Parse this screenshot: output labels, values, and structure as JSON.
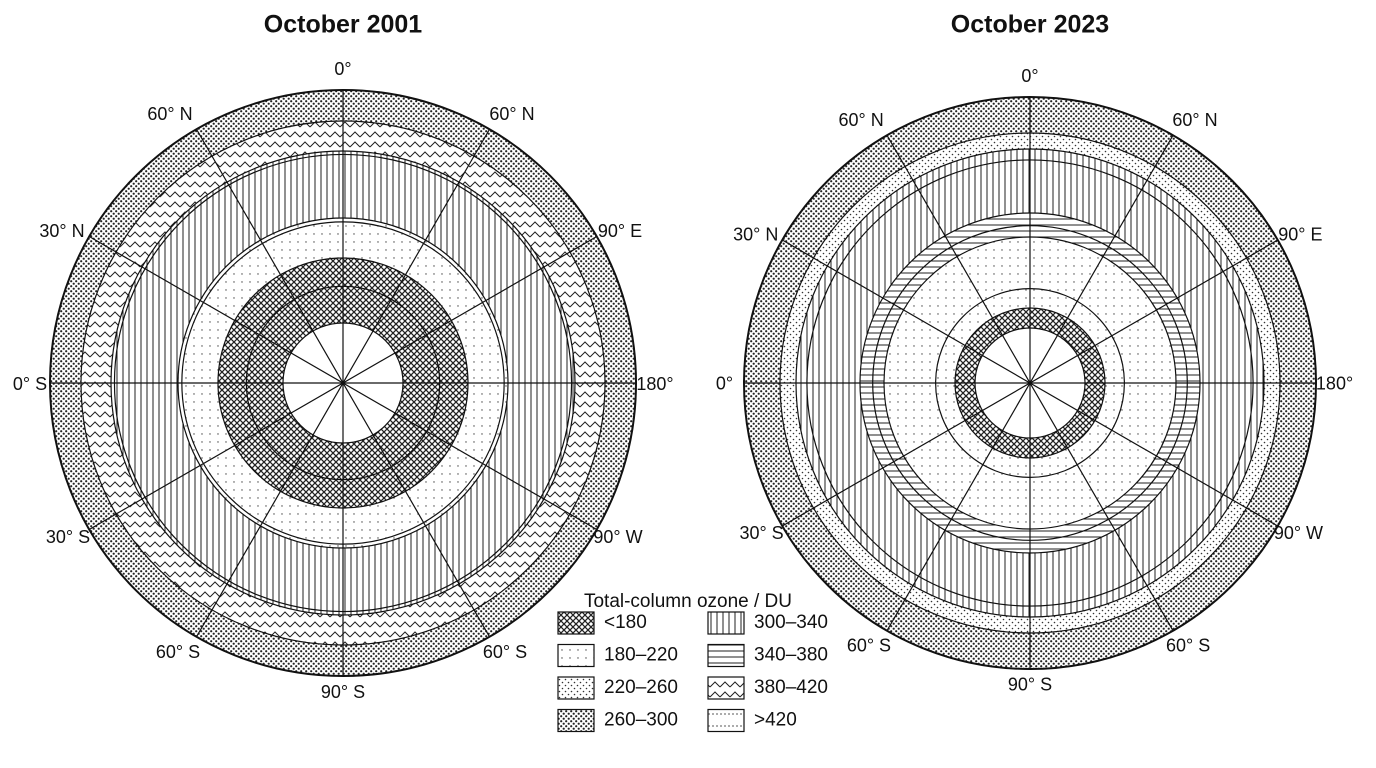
{
  "maps": [
    {
      "title": "October 2001",
      "labels": [
        "0°",
        "60° N",
        "60° N",
        "30° N",
        "90° E",
        "0° S",
        "180°",
        "30° S",
        "90° W",
        "60° S",
        "60° S",
        "90° S"
      ]
    },
    {
      "title": "October 2023",
      "labels": [
        "0°",
        "60° N",
        "60° N",
        "30° N",
        "90° E",
        "0°",
        "180°",
        "30° S",
        "90° W",
        "60° S",
        "60° S",
        "90° S"
      ]
    }
  ],
  "legend": {
    "title": "Total-column ozone / DU",
    "items": [
      "<180",
      "180–220",
      "220–260",
      "260–300",
      "300–340",
      "340–380",
      "380–420",
      ">420"
    ]
  }
}
